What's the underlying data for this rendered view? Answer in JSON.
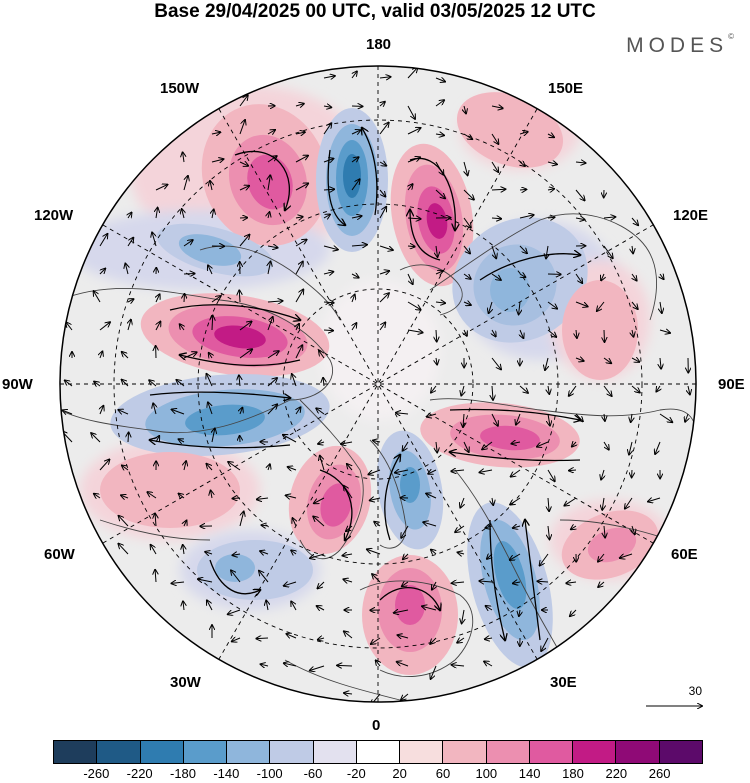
{
  "title": "Base 29/04/2025 00 UTC, valid 03/05/2025 12 UTC",
  "brand": "MODES",
  "brand_mark": "©",
  "labels": {
    "top": "180",
    "bottom": "0",
    "left": "90W",
    "right": "90E",
    "w150": "150W",
    "e150": "150E",
    "w120": "120W",
    "e120": "120E",
    "w60": "60W",
    "e60": "60E",
    "w30": "30W",
    "e30": "30E"
  },
  "reference_vector": "30",
  "colorbar": {
    "colors": [
      "#1e3d5c",
      "#1f5a86",
      "#2f7cb0",
      "#5a9ccb",
      "#8fb6dc",
      "#bfcbe6",
      "#e3e1ef",
      "#ffffff",
      "#f7dede",
      "#f2b6c0",
      "#ec8fb0",
      "#e05aa0",
      "#c21b85",
      "#8f0a76",
      "#5c0a6a"
    ],
    "ticks": [
      "-260",
      "-220",
      "-180",
      "-140",
      "-100",
      "-60",
      "-20",
      "20",
      "60",
      "100",
      "140",
      "180",
      "220",
      "260"
    ]
  },
  "anomalies": [
    {
      "name": "pos-150w",
      "color": "#f2b6c0",
      "core": "#e05aa0",
      "peak": "#c21b85"
    },
    {
      "name": "neg-180",
      "color": "#8fb6dc",
      "core": "#2f7cb0",
      "peak": "#1f5a86"
    },
    {
      "name": "pos-150e",
      "color": "#ec8fb0",
      "core": "#c21b85",
      "peak": "#8f0a76"
    },
    {
      "name": "pos-100w",
      "color": "#f2b6c0",
      "core": "#e05aa0",
      "peak": "#8f0a76"
    },
    {
      "name": "neg-80w",
      "color": "#8fb6dc",
      "core": "#5a9ccb",
      "peak": "#2f7cb0"
    },
    {
      "name": "pos-90e",
      "color": "#f2b6c0",
      "core": "#e05aa0",
      "peak": "#c21b85"
    },
    {
      "name": "pos-40w",
      "color": "#f2b6c0",
      "core": "#e05aa0",
      "peak": "#c21b85"
    },
    {
      "name": "neg-20e",
      "color": "#8fb6dc",
      "core": "#5a9ccb",
      "peak": "#2f7cb0"
    },
    {
      "name": "pos-0",
      "color": "#f2b6c0",
      "core": "#ec8fb0",
      "peak": "#e05aa0"
    },
    {
      "name": "neg-40e",
      "color": "#8fb6dc",
      "core": "#5a9ccb",
      "peak": "#2f7cb0"
    }
  ]
}
